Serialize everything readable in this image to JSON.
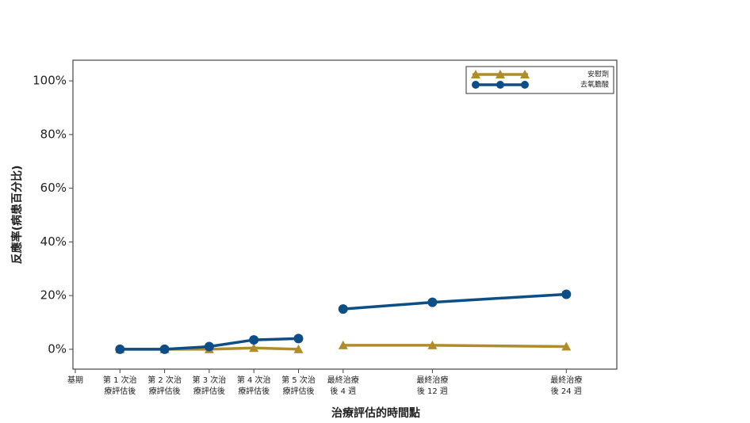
{
  "chart_data": {
    "type": "line",
    "y_label": "反應率(病患百分比)",
    "x_label": "治療評估的時間點",
    "categories": [
      "基期",
      "第 1 次治\n療評估後",
      "第 2 次治\n療評估後",
      "第 3 次治\n療評估後",
      "第 4 次治\n療評估後",
      "第 5 次治\n療評估後",
      "最終治療\n後 4 週",
      "最終治療\n後 12 週",
      "最終治療\n後 24 週"
    ],
    "series": [
      {
        "name": "安慰劑",
        "color": "#b08d2a",
        "marker": "triangle",
        "values": [
          null,
          0,
          0,
          0,
          0.5,
          0,
          1.5,
          1.5,
          1
        ]
      },
      {
        "name": "去氧膽酸",
        "color": "#0d4e86",
        "marker": "circle",
        "values": [
          null,
          0,
          0,
          1,
          3.5,
          4,
          15,
          17.5,
          20.5
        ]
      }
    ],
    "ylim": [
      -7.4,
      107.7
    ],
    "yticks": [
      {
        "value": 0,
        "label": "0%"
      },
      {
        "value": 20,
        "label": "20%"
      },
      {
        "value": 40,
        "label": "40%"
      },
      {
        "value": 60,
        "label": "60%"
      },
      {
        "value": 80,
        "label": "80%"
      },
      {
        "value": 100,
        "label": "100%"
      }
    ],
    "legend": "upper right"
  }
}
